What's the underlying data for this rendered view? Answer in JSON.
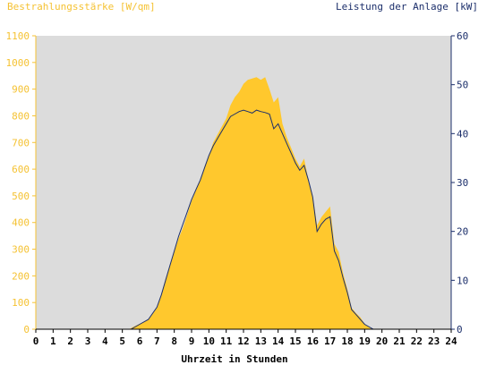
{
  "chart_data": {
    "type": "area",
    "title_left": "Bestrahlungsstärke [W/qm]",
    "title_right": "Leistung der Anlage [kW]",
    "xlabel": "Uhrzeit in Stunden",
    "xlim": [
      0,
      24
    ],
    "ylim_left": [
      0,
      1100
    ],
    "ylim_right": [
      0,
      60
    ],
    "x_ticks": [
      "0",
      "1",
      "2",
      "3",
      "4",
      "5",
      "6",
      "7",
      "8",
      "9",
      "10",
      "11",
      "12",
      "13",
      "14",
      "15",
      "16",
      "17",
      "18",
      "19",
      "20",
      "21",
      "22",
      "23",
      "24"
    ],
    "left_ticks": [
      "0",
      "100",
      "200",
      "300",
      "400",
      "500",
      "600",
      "700",
      "800",
      "900",
      "1000",
      "1100"
    ],
    "right_ticks": [
      "0",
      "10",
      "20",
      "30",
      "40",
      "50",
      "60"
    ],
    "grid": false,
    "colors": {
      "plot_bg": "#dcdcdc",
      "irradiance": "#ffc82d",
      "power": "#1c2f6b",
      "left_axis": "#f5c233",
      "right_axis": "#1c2f6b"
    },
    "series": [
      {
        "name": "Bestrahlungsstärke [W/qm]",
        "axis": "left",
        "points": [
          [
            0,
            0
          ],
          [
            5.4,
            0
          ],
          [
            5.6,
            8
          ],
          [
            6,
            20
          ],
          [
            6.5,
            35
          ],
          [
            7,
            80
          ],
          [
            7.25,
            130
          ],
          [
            7.5,
            190
          ],
          [
            7.75,
            240
          ],
          [
            8,
            290
          ],
          [
            8.25,
            340
          ],
          [
            8.5,
            380
          ],
          [
            8.75,
            430
          ],
          [
            9,
            480
          ],
          [
            9.25,
            520
          ],
          [
            9.5,
            560
          ],
          [
            9.75,
            610
          ],
          [
            10,
            650
          ],
          [
            10.25,
            700
          ],
          [
            10.5,
            730
          ],
          [
            10.75,
            760
          ],
          [
            11,
            790
          ],
          [
            11.25,
            840
          ],
          [
            11.5,
            870
          ],
          [
            11.75,
            890
          ],
          [
            12,
            920
          ],
          [
            12.25,
            935
          ],
          [
            12.5,
            940
          ],
          [
            12.75,
            945
          ],
          [
            13,
            935
          ],
          [
            13.25,
            945
          ],
          [
            13.5,
            900
          ],
          [
            13.75,
            850
          ],
          [
            14,
            870
          ],
          [
            14.25,
            770
          ],
          [
            14.5,
            720
          ],
          [
            14.75,
            680
          ],
          [
            15,
            640
          ],
          [
            15.25,
            610
          ],
          [
            15.5,
            640
          ],
          [
            15.75,
            560
          ],
          [
            16,
            500
          ],
          [
            16.25,
            390
          ],
          [
            16.5,
            420
          ],
          [
            16.75,
            440
          ],
          [
            17,
            460
          ],
          [
            17.25,
            320
          ],
          [
            17.5,
            290
          ],
          [
            17.75,
            210
          ],
          [
            18,
            150
          ],
          [
            18.25,
            80
          ],
          [
            18.5,
            60
          ],
          [
            18.75,
            45
          ],
          [
            19,
            20
          ],
          [
            19.4,
            0
          ],
          [
            24,
            0
          ]
        ]
      },
      {
        "name": "Leistung der Anlage [kW]",
        "axis": "right",
        "points": [
          [
            0,
            0
          ],
          [
            5.5,
            0
          ],
          [
            6,
            1
          ],
          [
            6.5,
            2
          ],
          [
            7,
            4.5
          ],
          [
            7.25,
            7
          ],
          [
            7.5,
            10
          ],
          [
            7.75,
            13
          ],
          [
            8,
            16
          ],
          [
            8.25,
            19
          ],
          [
            8.5,
            21.5
          ],
          [
            8.75,
            24
          ],
          [
            9,
            26.5
          ],
          [
            9.25,
            28.5
          ],
          [
            9.5,
            30.5
          ],
          [
            9.75,
            33
          ],
          [
            10,
            35.5
          ],
          [
            10.25,
            37.5
          ],
          [
            10.5,
            39
          ],
          [
            10.75,
            40.5
          ],
          [
            11,
            42
          ],
          [
            11.25,
            43.5
          ],
          [
            11.5,
            44
          ],
          [
            11.75,
            44.5
          ],
          [
            12,
            44.8
          ],
          [
            12.25,
            44.5
          ],
          [
            12.5,
            44.2
          ],
          [
            12.75,
            44.8
          ],
          [
            13,
            44.5
          ],
          [
            13.25,
            44.3
          ],
          [
            13.5,
            44
          ],
          [
            13.75,
            41
          ],
          [
            14,
            42
          ],
          [
            14.25,
            40
          ],
          [
            14.5,
            38
          ],
          [
            14.75,
            36
          ],
          [
            15,
            34
          ],
          [
            15.25,
            32.5
          ],
          [
            15.5,
            33.5
          ],
          [
            15.75,
            30.5
          ],
          [
            16,
            27
          ],
          [
            16.25,
            20
          ],
          [
            16.5,
            21.5
          ],
          [
            16.75,
            22.5
          ],
          [
            17,
            23
          ],
          [
            17.25,
            16
          ],
          [
            17.5,
            14
          ],
          [
            17.75,
            10.5
          ],
          [
            18,
            7.5
          ],
          [
            18.25,
            4
          ],
          [
            18.5,
            3
          ],
          [
            18.75,
            2
          ],
          [
            19,
            1
          ],
          [
            19.5,
            0
          ],
          [
            24,
            0
          ]
        ]
      }
    ]
  }
}
